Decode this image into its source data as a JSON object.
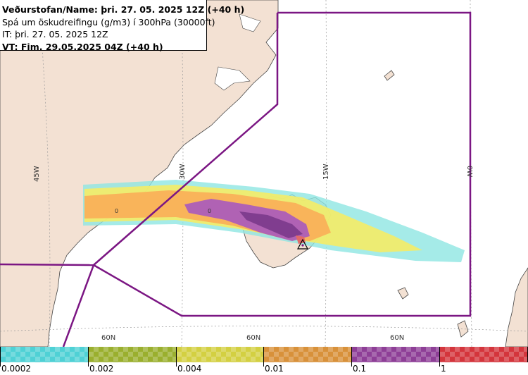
{
  "header": {
    "line1": "Veðurstofan/Name: þri. 27. 05. 2025 12Z (+40 h)",
    "line2": "Spá um öskudreifingu (g/m3) í 300hPa (30000ft)",
    "line3": "IT: þri. 27. 05. 2025 12Z",
    "line4": "VT: Fim. 29.05.2025 04Z (+40 h)"
  },
  "map": {
    "lon_labels": [
      "45W",
      "30W",
      "15W",
      "0W"
    ],
    "lat_labels": [
      "60N",
      "60N",
      "60N"
    ],
    "contour_labels": [
      "0",
      "0"
    ],
    "colors": {
      "land": "#f3e1d3",
      "sea": "#ffffff",
      "boundary": "#7b1683",
      "orange": "#f9b45a",
      "yellow": "#f5ec66",
      "cyan": "#8ee6e2",
      "purple": "#b062b4",
      "dark_purple": "#803d8f"
    },
    "volcano_icon": "warning-triangle-icon"
  },
  "legend": {
    "labels": [
      "0.0002",
      "0.002",
      "0.004",
      "0.01",
      "0.1",
      "1"
    ],
    "colors": [
      "#4fd1d5",
      "#9aaf2e",
      "#d3d042",
      "#d8913a",
      "#8e3f97",
      "#d4353c"
    ]
  }
}
